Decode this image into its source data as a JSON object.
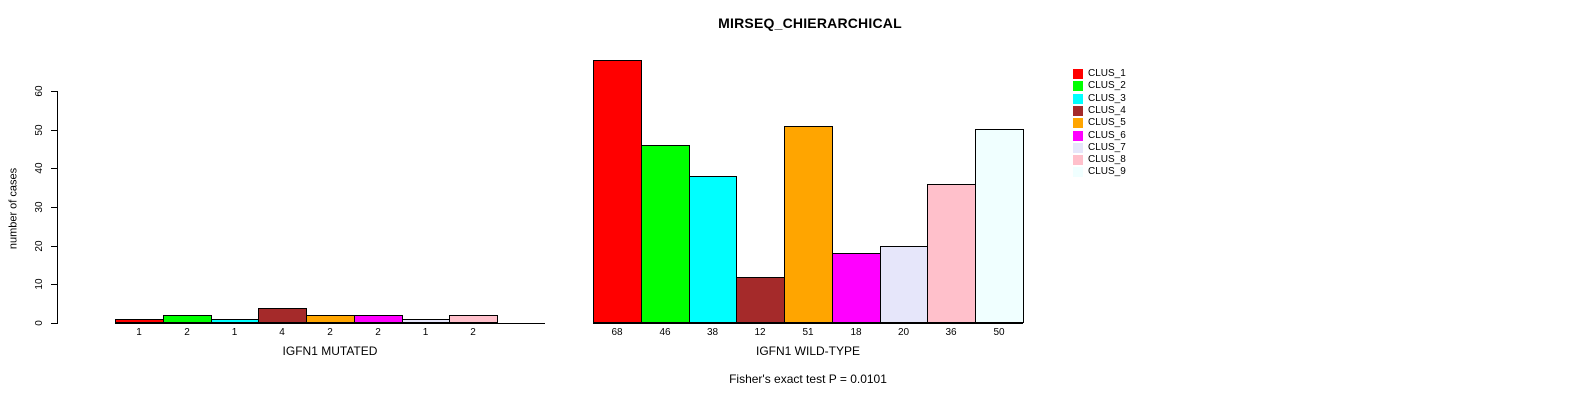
{
  "annotation": "Fisher's exact test P = 0.0101",
  "legend": {
    "entries": [
      {
        "label": "CLUS_1",
        "color": "#FF0000"
      },
      {
        "label": "CLUS_2",
        "color": "#00FF00"
      },
      {
        "label": "CLUS_3",
        "color": "#00FFFF"
      },
      {
        "label": "CLUS_4",
        "color": "#A52A2A"
      },
      {
        "label": "CLUS_5",
        "color": "#FFA500"
      },
      {
        "label": "CLUS_6",
        "color": "#FF00FF"
      },
      {
        "label": "CLUS_7",
        "color": "#E6E6FA"
      },
      {
        "label": "CLUS_8",
        "color": "#FFC0CB"
      },
      {
        "label": "CLUS_9",
        "color": "#F0FFFF"
      }
    ]
  },
  "chart_data": [
    {
      "type": "bar",
      "title": "MIRSEQ_CHIERARCHICAL",
      "xlabel": "IGFN1 MUTATED",
      "ylabel": "number of cases",
      "categories": [
        "CLUS_1",
        "CLUS_2",
        "CLUS_3",
        "CLUS_4",
        "CLUS_5",
        "CLUS_6",
        "CLUS_7",
        "CLUS_8",
        "CLUS_9"
      ],
      "values": [
        1,
        2,
        1,
        4,
        2,
        2,
        1,
        2,
        0
      ],
      "bar_value_labels": [
        "1",
        "2",
        "1",
        "4",
        "2",
        "2",
        "1",
        "2",
        ""
      ],
      "colors": [
        "#FF0000",
        "#00FF00",
        "#00FFFF",
        "#A52A2A",
        "#FFA500",
        "#FF00FF",
        "#E6E6FA",
        "#FFC0CB",
        "#F0FFFF"
      ],
      "yticks": [
        0,
        10,
        20,
        30,
        40,
        50,
        60
      ],
      "ylim": [
        0,
        68
      ],
      "grid": false,
      "legend_position": "right"
    },
    {
      "type": "bar",
      "title": "MIRSEQ_CHIERARCHICAL",
      "xlabel": "IGFN1 WILD-TYPE",
      "ylabel": "number of cases",
      "categories": [
        "CLUS_1",
        "CLUS_2",
        "CLUS_3",
        "CLUS_4",
        "CLUS_5",
        "CLUS_6",
        "CLUS_7",
        "CLUS_8",
        "CLUS_9"
      ],
      "values": [
        68,
        46,
        38,
        12,
        51,
        18,
        20,
        36,
        50
      ],
      "bar_value_labels": [
        "68",
        "46",
        "38",
        "12",
        "51",
        "18",
        "20",
        "36",
        "50"
      ],
      "colors": [
        "#FF0000",
        "#00FF00",
        "#00FFFF",
        "#A52A2A",
        "#FFA500",
        "#FF00FF",
        "#E6E6FA",
        "#FFC0CB",
        "#F0FFFF"
      ],
      "yticks": [
        0,
        10,
        20,
        30,
        40,
        50,
        60
      ],
      "ylim": [
        0,
        68
      ],
      "grid": false,
      "annotation": "Fisher's exact test P = 0.0101"
    }
  ]
}
